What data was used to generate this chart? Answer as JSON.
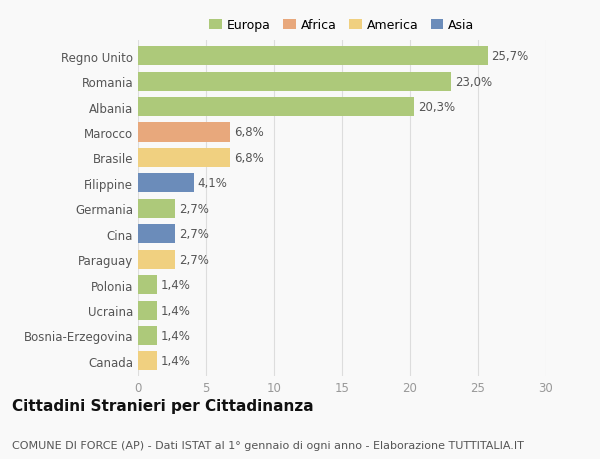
{
  "categories": [
    "Regno Unito",
    "Romania",
    "Albania",
    "Marocco",
    "Brasile",
    "Filippine",
    "Germania",
    "Cina",
    "Paraguay",
    "Polonia",
    "Ucraina",
    "Bosnia-Erzegovina",
    "Canada"
  ],
  "values": [
    25.7,
    23.0,
    20.3,
    6.8,
    6.8,
    4.1,
    2.7,
    2.7,
    2.7,
    1.4,
    1.4,
    1.4,
    1.4
  ],
  "labels": [
    "25,7%",
    "23,0%",
    "20,3%",
    "6,8%",
    "6,8%",
    "4,1%",
    "2,7%",
    "2,7%",
    "2,7%",
    "1,4%",
    "1,4%",
    "1,4%",
    "1,4%"
  ],
  "colors": [
    "#adc97a",
    "#adc97a",
    "#adc97a",
    "#e8a87c",
    "#f0d080",
    "#6b8cba",
    "#adc97a",
    "#6b8cba",
    "#f0d080",
    "#adc97a",
    "#adc97a",
    "#adc97a",
    "#f0d080"
  ],
  "legend_labels": [
    "Europa",
    "Africa",
    "America",
    "Asia"
  ],
  "legend_colors": [
    "#adc97a",
    "#e8a87c",
    "#f0d080",
    "#6b8cba"
  ],
  "title": "Cittadini Stranieri per Cittadinanza",
  "subtitle": "COMUNE DI FORCE (AP) - Dati ISTAT al 1° gennaio di ogni anno - Elaborazione TUTTITALIA.IT",
  "xlim": [
    0,
    30
  ],
  "xticks": [
    0,
    5,
    10,
    15,
    20,
    25,
    30
  ],
  "background_color": "#f9f9f9",
  "bar_height": 0.75,
  "label_fontsize": 8.5,
  "ytick_fontsize": 8.5,
  "xtick_fontsize": 8.5,
  "title_fontsize": 11,
  "subtitle_fontsize": 8
}
